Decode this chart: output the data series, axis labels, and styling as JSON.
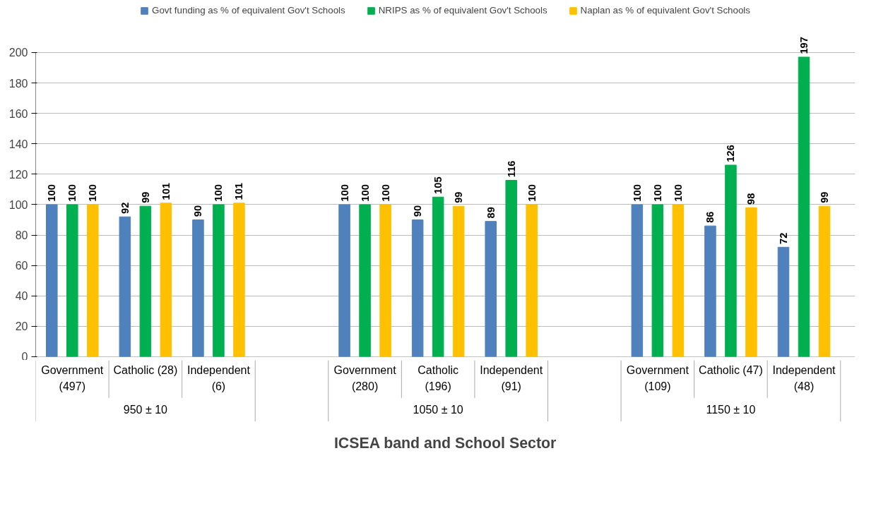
{
  "chart_data": {
    "type": "bar",
    "xlabel": "ICSEA band and School Sector",
    "categories": [
      "Government\n(497)",
      "Catholic (28)",
      "Independent\n(6)",
      null,
      "Government\n(280)",
      "Catholic\n(196)",
      "Independent\n(91)",
      null,
      "Government\n(109)",
      "Catholic (47)",
      "Independent\n(48)"
    ],
    "series": [
      {
        "name": "Govt funding as % of equivalent Gov't Schools",
        "color": "#4f81bd",
        "values": [
          100,
          92,
          90,
          null,
          100,
          90,
          89,
          null,
          100,
          86,
          72
        ]
      },
      {
        "name": "NRIPS as % of equivalent Gov't Schools",
        "color": "#00b050",
        "values": [
          100,
          99,
          100,
          null,
          100,
          105,
          116,
          null,
          100,
          126,
          197
        ]
      },
      {
        "name": "Naplan as % of equivalent Gov't Schools",
        "color": "#ffc000",
        "values": [
          100,
          101,
          101,
          null,
          100,
          99,
          100,
          null,
          100,
          98,
          99
        ]
      }
    ],
    "annotations": [
      "950 ± 10",
      "1050 ± 10",
      "1150 ± 10"
    ],
    "ylim": [
      0,
      200
    ],
    "yticks": [
      0,
      20,
      40,
      60,
      80,
      100,
      120,
      140,
      160,
      180,
      200
    ],
    "grid": "y",
    "legend": "top",
    "data_labels": true
  }
}
